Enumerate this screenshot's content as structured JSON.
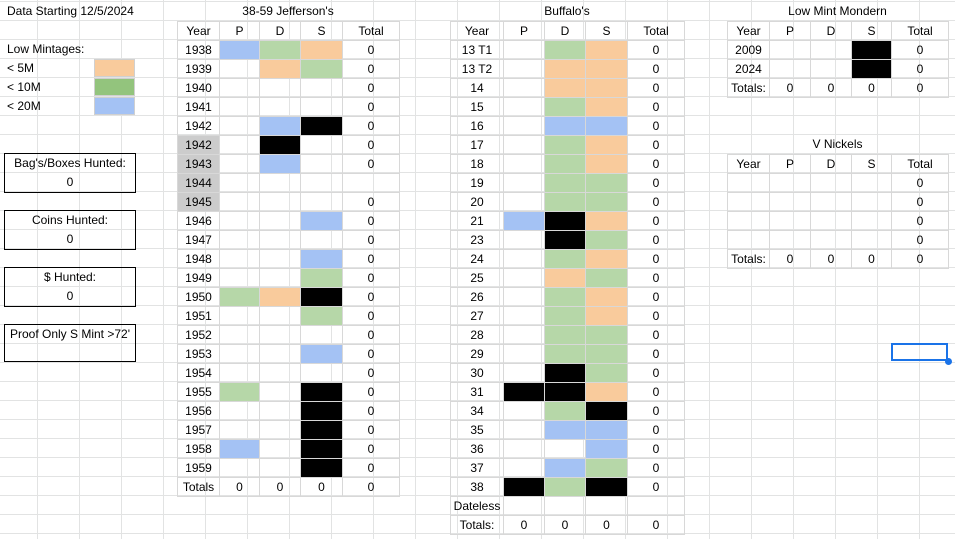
{
  "data_start": "Data Starting 12/5/2024",
  "legend": {
    "title": "Low Mintages:",
    "items": [
      {
        "label": "< 5M",
        "color": "#f9cb9c"
      },
      {
        "label": "< 10M",
        "color": "#93c47d"
      },
      {
        "label": "< 20M",
        "color": "#a4c2f4"
      }
    ]
  },
  "boxes": [
    {
      "label": "Bag's/Boxes Hunted:",
      "value": "0"
    },
    {
      "label": "Coins Hunted:",
      "value": "0"
    },
    {
      "label": "$ Hunted:",
      "value": "0"
    },
    {
      "label": "Proof Only S Mint >72'",
      "value": ""
    }
  ],
  "jefferson": {
    "title": "38-59 Jefferson's",
    "headers": [
      "Year",
      "P",
      "D",
      "S",
      "Total"
    ],
    "rows": [
      {
        "year": "1938",
        "total": "0"
      },
      {
        "year": "1939",
        "total": "0"
      },
      {
        "year": "1940",
        "total": "0"
      },
      {
        "year": "1941",
        "total": "0"
      },
      {
        "year": "1942",
        "total": "0"
      },
      {
        "year": "1942",
        "total": "0"
      },
      {
        "year": "1943",
        "total": "0"
      },
      {
        "year": "1944",
        "total": ""
      },
      {
        "year": "1945",
        "total": "0"
      },
      {
        "year": "1946",
        "total": "0"
      },
      {
        "year": "1947",
        "total": "0"
      },
      {
        "year": "1948",
        "total": "0"
      },
      {
        "year": "1949",
        "total": "0"
      },
      {
        "year": "1950",
        "total": "0"
      },
      {
        "year": "1951",
        "total": "0"
      },
      {
        "year": "1952",
        "total": "0"
      },
      {
        "year": "1953",
        "total": "0"
      },
      {
        "year": "1954",
        "total": "0"
      },
      {
        "year": "1955",
        "total": "0"
      },
      {
        "year": "1956",
        "total": "0"
      },
      {
        "year": "1957",
        "total": "0"
      },
      {
        "year": "1958",
        "total": "0"
      },
      {
        "year": "1959",
        "total": "0"
      }
    ],
    "totals": {
      "label": "Totals",
      "p": "0",
      "d": "0",
      "s": "0",
      "total": "0"
    }
  },
  "buffalo": {
    "title": "Buffalo's",
    "headers": [
      "Year",
      "P",
      "D",
      "S",
      "Total"
    ],
    "rows": [
      {
        "year": "13 T1",
        "total": "0"
      },
      {
        "year": "13 T2",
        "total": "0"
      },
      {
        "year": "14",
        "total": "0"
      },
      {
        "year": "15",
        "total": "0"
      },
      {
        "year": "16",
        "total": "0"
      },
      {
        "year": "17",
        "total": "0"
      },
      {
        "year": "18",
        "total": "0"
      },
      {
        "year": "19",
        "total": "0"
      },
      {
        "year": "20",
        "total": "0"
      },
      {
        "year": "21",
        "total": "0"
      },
      {
        "year": "23",
        "total": "0"
      },
      {
        "year": "24",
        "total": "0"
      },
      {
        "year": "25",
        "total": "0"
      },
      {
        "year": "26",
        "total": "0"
      },
      {
        "year": "27",
        "total": "0"
      },
      {
        "year": "28",
        "total": "0"
      },
      {
        "year": "29",
        "total": "0"
      },
      {
        "year": "30",
        "total": "0"
      },
      {
        "year": "31",
        "total": "0"
      },
      {
        "year": "34",
        "total": "0"
      },
      {
        "year": "35",
        "total": "0"
      },
      {
        "year": "36",
        "total": "0"
      },
      {
        "year": "37",
        "total": "0"
      },
      {
        "year": "38",
        "total": "0"
      },
      {
        "year": "Dateless",
        "total": ""
      }
    ],
    "totals": {
      "label": "Totals:",
      "p": "0",
      "d": "0",
      "s": "0",
      "total": "0"
    }
  },
  "low_mint": {
    "title": "Low Mint Mondern",
    "headers": [
      "Year",
      "P",
      "D",
      "S",
      "Total"
    ],
    "rows": [
      {
        "year": "2009",
        "total": "0"
      },
      {
        "year": "2024",
        "total": "0"
      }
    ],
    "totals": {
      "label": "Totals:",
      "p": "0",
      "d": "0",
      "s": "0",
      "total": "0"
    }
  },
  "v_nickels": {
    "title": "V Nickels",
    "headers": [
      "Year",
      "P",
      "D",
      "S",
      "Total"
    ],
    "rows": [
      {
        "year": "",
        "total": "0"
      },
      {
        "year": "",
        "total": "0"
      },
      {
        "year": "",
        "total": "0"
      },
      {
        "year": "",
        "total": "0"
      }
    ],
    "totals": {
      "label": "Totals:",
      "p": "0",
      "d": "0",
      "s": "0",
      "total": "0"
    }
  }
}
